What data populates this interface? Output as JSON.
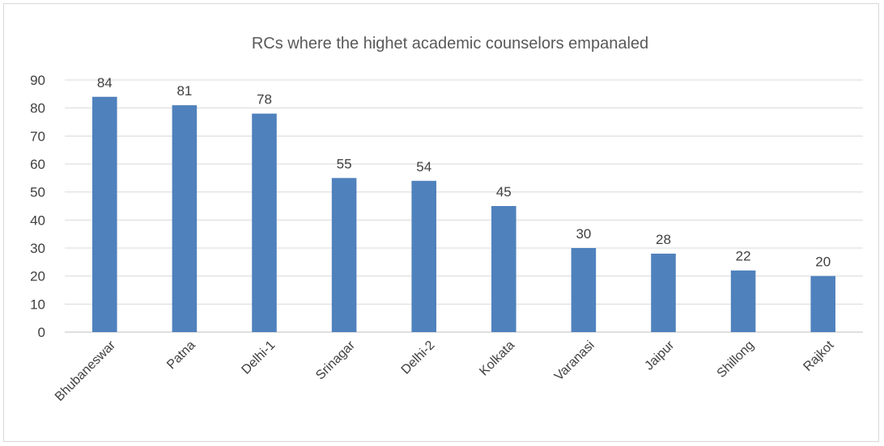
{
  "chart_data": {
    "type": "bar",
    "title": "RCs where the highet academic counselors empanaled",
    "categories": [
      "Bhubaneswar",
      "Patna",
      "Delhi-1",
      "Srinagar",
      "Delhi-2",
      "Kolkata",
      "Varanasi",
      "Jaipur",
      "Shillong",
      "Rajkot"
    ],
    "values": [
      84,
      81,
      78,
      55,
      54,
      45,
      30,
      28,
      22,
      20
    ],
    "ylim": [
      0,
      90
    ],
    "yticks": [
      0,
      10,
      20,
      30,
      40,
      50,
      60,
      70,
      80,
      90
    ],
    "grid": true,
    "legend": "none",
    "bar_color": "#4f81bd"
  }
}
